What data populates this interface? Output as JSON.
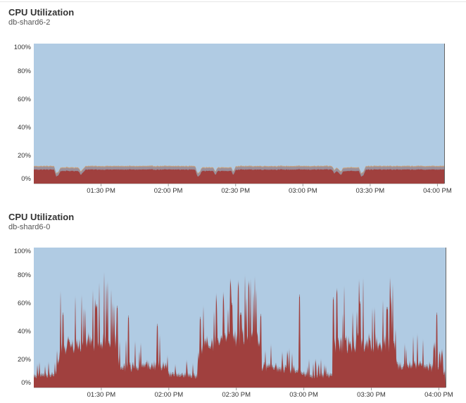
{
  "colors": {
    "idle": "#b0cbe3",
    "user": "#a0403e",
    "system": "#9a8f9a",
    "iowait": "#c9a07a",
    "axis": "#666666"
  },
  "chart_data": [
    {
      "type": "area",
      "stacked": true,
      "title": "CPU Utilization",
      "subtitle": "db-shard6-2",
      "ylim": [
        0,
        100
      ],
      "yticks": [
        "100%",
        "80%",
        "60%",
        "40%",
        "20%",
        "0%"
      ],
      "xlim": [
        "13:00",
        "16:03"
      ],
      "xticks": [
        "01:30 PM",
        "02:00 PM",
        "02:30 PM",
        "03:00 PM",
        "03:30 PM",
        "04:00 PM"
      ],
      "grid": false,
      "legend": "none",
      "series": [
        {
          "key": "user",
          "color": "#a0403e",
          "profile": [
            [
              0,
              10
            ],
            [
              9,
              10
            ],
            [
              10,
              5
            ],
            [
              11,
              6
            ],
            [
              12,
              9
            ],
            [
              20,
              9
            ],
            [
              21,
              6
            ],
            [
              22,
              8
            ],
            [
              23,
              10
            ],
            [
              72,
              10
            ],
            [
              73,
              5
            ],
            [
              74,
              6
            ],
            [
              75,
              9
            ],
            [
              80,
              9
            ],
            [
              81,
              6
            ],
            [
              82,
              9
            ],
            [
              88,
              9
            ],
            [
              89,
              6
            ],
            [
              90,
              10
            ],
            [
              133,
              10
            ],
            [
              134,
              7
            ],
            [
              135,
              9
            ],
            [
              137,
              6
            ],
            [
              138,
              9
            ],
            [
              145,
              9
            ],
            [
              146,
              5
            ],
            [
              147,
              6
            ],
            [
              148,
              10
            ],
            [
              183,
              10
            ]
          ]
        },
        {
          "key": "system",
          "color": "#9a8f9a",
          "profile": [
            [
              0,
              2
            ],
            [
              183,
              2
            ]
          ]
        },
        {
          "key": "iowait",
          "color": "#c9a07a",
          "profile": [
            [
              0,
              0.6
            ],
            [
              183,
              0.6
            ]
          ]
        }
      ]
    },
    {
      "type": "area",
      "stacked": true,
      "title": "CPU Utilization",
      "subtitle": "db-shard6-0",
      "ylim": [
        0,
        100
      ],
      "yticks": [
        "100%",
        "80%",
        "60%",
        "40%",
        "20%",
        "0%"
      ],
      "xlim": [
        "13:00",
        "16:03"
      ],
      "xticks": [
        "01:30 PM",
        "02:00 PM",
        "02:30 PM",
        "03:00 PM",
        "03:30 PM",
        "04:00 PM"
      ],
      "grid": false,
      "legend": "none",
      "series": [
        {
          "key": "user",
          "color": "#a0403e",
          "profile": [
            [
              0,
              8
            ],
            [
              10,
              9
            ],
            [
              12,
              30
            ],
            [
              20,
              33
            ],
            [
              30,
              35
            ],
            [
              37,
              33
            ],
            [
              38,
              14
            ],
            [
              45,
              15
            ],
            [
              50,
              16
            ],
            [
              58,
              16
            ],
            [
              60,
              9
            ],
            [
              70,
              8
            ],
            [
              73,
              8
            ],
            [
              74,
              30
            ],
            [
              85,
              33
            ],
            [
              95,
              38
            ],
            [
              100,
              34
            ],
            [
              101,
              15
            ],
            [
              110,
              14
            ],
            [
              118,
              12
            ],
            [
              120,
              9
            ],
            [
              130,
              8
            ],
            [
              133,
              10
            ],
            [
              134,
              30
            ],
            [
              145,
              33
            ],
            [
              160,
              33
            ],
            [
              162,
              15
            ],
            [
              170,
              16
            ],
            [
              180,
              14
            ],
            [
              182,
              12
            ],
            [
              183,
              3
            ]
          ]
        },
        {
          "key": "system",
          "color": "#9a8f9a",
          "profile": [
            [
              0,
              1.5
            ],
            [
              183,
              1.5
            ]
          ]
        }
      ],
      "spikes": {
        "max_peaks": [
          [
            13,
            52
          ],
          [
            28,
            58
          ],
          [
            37,
            57
          ],
          [
            42,
            50
          ],
          [
            55,
            44
          ],
          [
            74,
            49
          ],
          [
            88,
            59
          ],
          [
            92,
            52
          ],
          [
            101,
            51
          ],
          [
            118,
            65
          ],
          [
            133,
            63
          ],
          [
            145,
            60
          ],
          [
            157,
            56
          ],
          [
            179,
            52
          ]
        ]
      }
    }
  ]
}
